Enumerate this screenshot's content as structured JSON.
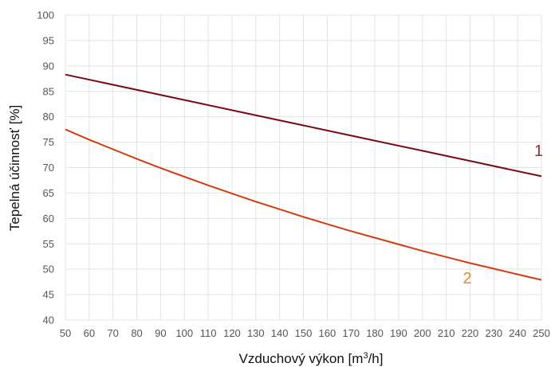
{
  "chart_data": {
    "type": "line",
    "xlabel_main": "Vzduchový výkon [m",
    "xlabel_sup": "3",
    "xlabel_end": "/h]",
    "ylabel": "Tepelná účinnosť [%]",
    "xlim": [
      50,
      250
    ],
    "ylim": [
      40,
      100
    ],
    "x_ticks": [
      50,
      60,
      70,
      80,
      90,
      100,
      110,
      120,
      130,
      140,
      150,
      160,
      170,
      180,
      190,
      200,
      210,
      220,
      230,
      240,
      250
    ],
    "y_ticks": [
      40,
      45,
      50,
      55,
      60,
      65,
      70,
      75,
      80,
      85,
      90,
      95,
      100
    ],
    "grid": true,
    "series": [
      {
        "name": "1",
        "color": "#7a0a12",
        "label_color": "#a0282e",
        "label_at": [
          247,
          72.3
        ],
        "x": [
          50,
          75,
          100,
          125,
          150,
          175,
          200,
          225,
          250
        ],
        "values": [
          88.3,
          85.8,
          83.3,
          80.8,
          78.3,
          75.8,
          73.3,
          70.8,
          68.3
        ]
      },
      {
        "name": "2",
        "color": "#d23c10",
        "label_color": "#e08a32",
        "label_at": [
          217,
          47.2
        ],
        "x": [
          50,
          60,
          70,
          80,
          90,
          100,
          110,
          120,
          130,
          140,
          150,
          160,
          170,
          180,
          190,
          200,
          210,
          220,
          230,
          240,
          250
        ],
        "values": [
          77.5,
          75.5,
          73.6,
          71.7,
          69.9,
          68.2,
          66.5,
          64.9,
          63.3,
          61.8,
          60.3,
          58.9,
          57.5,
          56.2,
          54.9,
          53.6,
          52.4,
          51.2,
          50.1,
          49.0,
          47.9
        ]
      }
    ]
  }
}
